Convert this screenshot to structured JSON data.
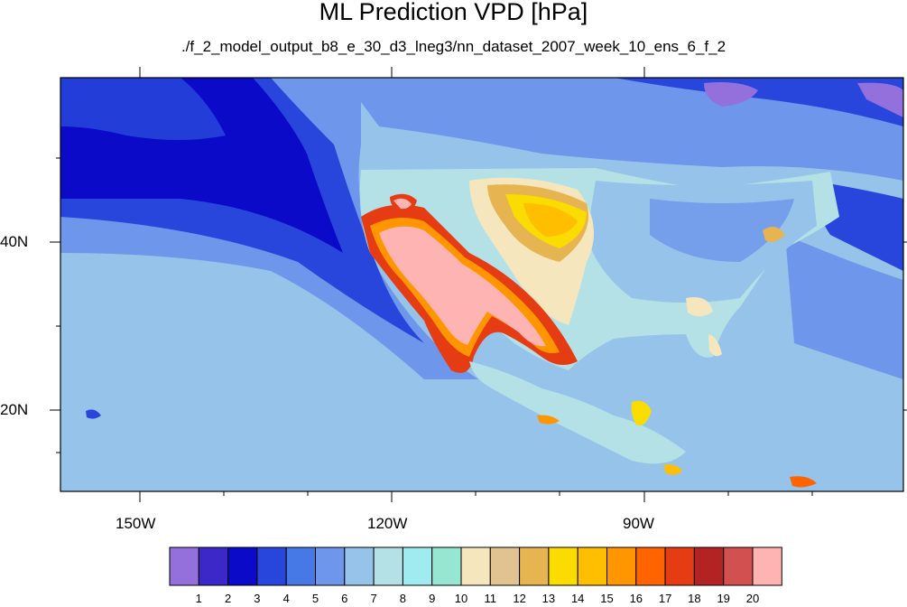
{
  "title": "ML Prediction VPD [hPa]",
  "subtitle": "./f_2_model_output_b8_e_30_d3_lneg3/nn_dataset_2007_week_10_ens_6_f_2",
  "axes": {
    "lat_labels": [
      "40N",
      "20N"
    ],
    "lon_labels": [
      "150W",
      "120W",
      "90W"
    ]
  },
  "colorbar": {
    "labels": [
      "1",
      "2",
      "3",
      "4",
      "5",
      "6",
      "7",
      "8",
      "9",
      "10",
      "11",
      "12",
      "13",
      "14",
      "15",
      "16",
      "17",
      "18",
      "19",
      "20"
    ],
    "colors": [
      "#9370db",
      "#3c28c8",
      "#0a0ac8",
      "#2846dc",
      "#4678e6",
      "#6e96eb",
      "#96c3ea",
      "#b4e1e6",
      "#a0ebf0",
      "#96e6d2",
      "#f5e6be",
      "#e1c391",
      "#e6b450",
      "#fadc00",
      "#ffbe00",
      "#ff9600",
      "#ff6400",
      "#e63c14",
      "#b42323",
      "#d25050",
      "#ffb4b4"
    ]
  },
  "map": {
    "region": "North Pacific and contiguous United States",
    "ocean_color": "#96c3ea",
    "land_color": "#b4e1e6"
  }
}
